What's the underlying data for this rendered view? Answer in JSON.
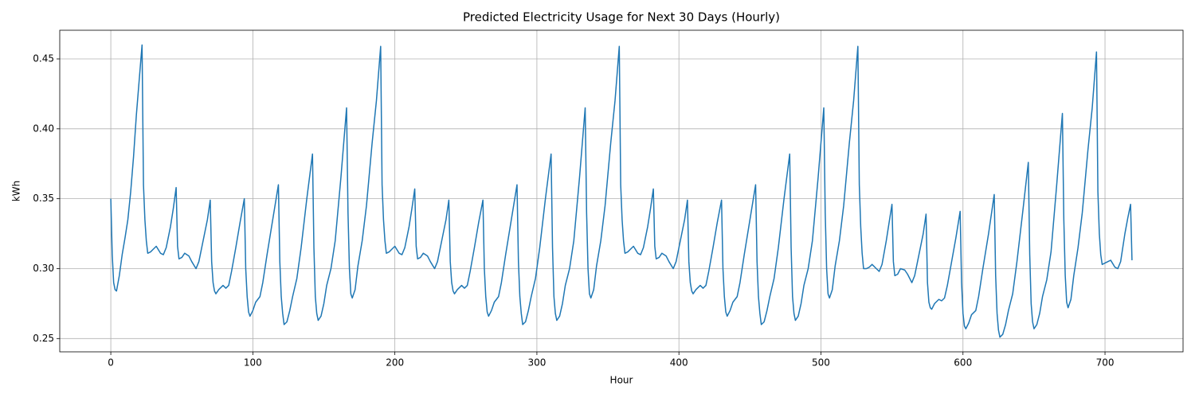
{
  "chart_data": {
    "type": "line",
    "title": "Predicted Electricity Usage for Next 30 Days (Hourly)",
    "x_label": "Hour",
    "y_label": "kWh",
    "color": "#1f77b4",
    "grid": true,
    "xlim": [
      -35.95,
      754.95
    ],
    "ylim": [
      0.2405,
      0.4705
    ],
    "xticks": [
      0,
      100,
      200,
      300,
      400,
      500,
      600,
      700
    ],
    "yticks": [
      0.25,
      {
        "value": 0.3,
        "label": "0.30"
      },
      0.35,
      {
        "value": 0.4,
        "label": "0.40"
      },
      0.45
    ],
    "x": [
      0,
      1,
      2,
      3,
      4,
      6,
      8,
      10,
      12,
      14,
      16,
      18,
      20,
      22,
      23,
      24,
      25,
      26,
      28,
      30,
      32,
      35,
      37,
      39,
      42,
      44,
      46,
      47,
      48,
      50,
      52,
      55,
      57,
      60,
      62,
      65,
      68,
      70,
      71,
      72,
      73,
      74,
      76,
      79,
      81,
      83,
      85,
      88,
      91,
      94,
      95,
      96,
      97,
      98,
      100,
      102,
      105,
      107,
      110,
      114,
      118,
      119,
      120,
      121,
      122,
      124,
      126,
      128,
      131,
      134,
      138,
      142,
      143,
      144,
      145,
      146,
      148,
      150,
      152,
      155,
      158,
      162,
      166,
      167,
      168,
      169,
      170,
      172,
      174,
      177,
      180,
      184,
      187,
      190,
      191,
      192,
      193,
      194,
      196,
      198,
      200,
      203,
      205,
      207,
      210,
      212,
      214,
      215,
      216,
      218,
      220,
      223,
      225,
      228,
      230,
      233,
      236,
      238,
      239,
      240,
      241,
      242,
      244,
      247,
      249,
      251,
      253,
      256,
      259,
      262,
      263,
      264,
      265,
      266,
      268,
      270,
      273,
      275,
      278,
      282,
      286,
      287,
      288,
      289,
      290,
      292,
      294,
      296,
      299,
      302,
      306,
      310,
      311,
      312,
      313,
      314,
      316,
      318,
      320,
      323,
      326,
      330,
      334,
      335,
      336,
      337,
      338,
      340,
      342,
      345,
      348,
      352,
      355,
      358,
      359,
      360,
      361,
      362,
      364,
      366,
      368,
      371,
      373,
      375,
      378,
      380,
      382,
      383,
      384,
      386,
      388,
      391,
      393,
      396,
      398,
      401,
      404,
      406,
      407,
      408,
      409,
      410,
      412,
      415,
      417,
      419,
      421,
      424,
      427,
      430,
      431,
      432,
      433,
      434,
      436,
      438,
      441,
      443,
      446,
      450,
      454,
      455,
      456,
      457,
      458,
      460,
      462,
      464,
      467,
      470,
      474,
      478,
      479,
      480,
      481,
      482,
      484,
      486,
      488,
      491,
      494,
      498,
      502,
      503,
      504,
      505,
      506,
      508,
      510,
      513,
      516,
      520,
      523,
      526,
      527,
      528,
      529,
      530,
      532,
      534,
      536,
      539,
      541,
      543,
      546,
      548,
      550,
      551,
      552,
      554,
      556,
      559,
      561,
      564,
      566,
      569,
      572,
      574,
      575,
      576,
      577,
      578,
      580,
      583,
      585,
      587,
      589,
      592,
      595,
      598,
      599,
      600,
      601,
      602,
      604,
      606,
      609,
      611,
      614,
      618,
      622,
      623,
      624,
      625,
      626,
      628,
      630,
      632,
      635,
      638,
      642,
      646,
      647,
      648,
      649,
      650,
      652,
      654,
      656,
      659,
      662,
      666,
      670,
      671,
      672,
      673,
      674,
      676,
      678,
      681,
      684,
      688,
      691,
      694,
      695,
      696,
      697,
      698,
      700,
      702,
      704,
      707,
      709,
      711,
      714,
      716,
      718,
      719
    ],
    "values": [
      0.35,
      0.31,
      0.29,
      0.285,
      0.284,
      0.295,
      0.31,
      0.322,
      0.335,
      0.355,
      0.38,
      0.41,
      0.435,
      0.46,
      0.36,
      0.335,
      0.32,
      0.311,
      0.312,
      0.314,
      0.316,
      0.311,
      0.31,
      0.315,
      0.33,
      0.343,
      0.358,
      0.316,
      0.307,
      0.308,
      0.311,
      0.309,
      0.305,
      0.3,
      0.305,
      0.32,
      0.335,
      0.349,
      0.305,
      0.29,
      0.284,
      0.282,
      0.285,
      0.288,
      0.286,
      0.288,
      0.298,
      0.315,
      0.333,
      0.35,
      0.3,
      0.28,
      0.269,
      0.266,
      0.27,
      0.276,
      0.28,
      0.29,
      0.31,
      0.335,
      0.36,
      0.305,
      0.28,
      0.268,
      0.26,
      0.262,
      0.27,
      0.28,
      0.293,
      0.315,
      0.35,
      0.382,
      0.315,
      0.28,
      0.268,
      0.263,
      0.266,
      0.275,
      0.288,
      0.3,
      0.32,
      0.365,
      0.415,
      0.34,
      0.3,
      0.282,
      0.279,
      0.285,
      0.302,
      0.32,
      0.345,
      0.39,
      0.42,
      0.459,
      0.36,
      0.335,
      0.32,
      0.311,
      0.312,
      0.314,
      0.316,
      0.311,
      0.31,
      0.315,
      0.33,
      0.343,
      0.357,
      0.316,
      0.307,
      0.308,
      0.311,
      0.309,
      0.305,
      0.3,
      0.305,
      0.32,
      0.335,
      0.349,
      0.305,
      0.29,
      0.284,
      0.282,
      0.285,
      0.288,
      0.286,
      0.288,
      0.298,
      0.315,
      0.333,
      0.349,
      0.3,
      0.28,
      0.269,
      0.266,
      0.27,
      0.276,
      0.28,
      0.29,
      0.31,
      0.335,
      0.36,
      0.305,
      0.28,
      0.268,
      0.26,
      0.262,
      0.27,
      0.28,
      0.293,
      0.315,
      0.35,
      0.382,
      0.315,
      0.28,
      0.268,
      0.263,
      0.266,
      0.275,
      0.288,
      0.3,
      0.32,
      0.365,
      0.415,
      0.34,
      0.3,
      0.282,
      0.279,
      0.285,
      0.302,
      0.32,
      0.345,
      0.39,
      0.42,
      0.459,
      0.36,
      0.335,
      0.32,
      0.311,
      0.312,
      0.314,
      0.316,
      0.311,
      0.31,
      0.315,
      0.33,
      0.343,
      0.357,
      0.316,
      0.307,
      0.308,
      0.311,
      0.309,
      0.305,
      0.3,
      0.305,
      0.32,
      0.335,
      0.349,
      0.305,
      0.29,
      0.284,
      0.282,
      0.285,
      0.288,
      0.286,
      0.288,
      0.298,
      0.315,
      0.333,
      0.349,
      0.3,
      0.28,
      0.269,
      0.266,
      0.27,
      0.276,
      0.28,
      0.29,
      0.31,
      0.335,
      0.36,
      0.305,
      0.28,
      0.268,
      0.26,
      0.262,
      0.27,
      0.28,
      0.293,
      0.315,
      0.35,
      0.382,
      0.315,
      0.28,
      0.268,
      0.263,
      0.266,
      0.275,
      0.288,
      0.3,
      0.32,
      0.365,
      0.415,
      0.34,
      0.3,
      0.282,
      0.279,
      0.285,
      0.302,
      0.32,
      0.345,
      0.39,
      0.42,
      0.459,
      0.36,
      0.33,
      0.311,
      0.3,
      0.3,
      0.301,
      0.303,
      0.3,
      0.298,
      0.303,
      0.32,
      0.333,
      0.346,
      0.305,
      0.295,
      0.296,
      0.3,
      0.299,
      0.296,
      0.29,
      0.295,
      0.31,
      0.325,
      0.339,
      0.29,
      0.276,
      0.272,
      0.271,
      0.275,
      0.278,
      0.277,
      0.279,
      0.288,
      0.305,
      0.322,
      0.341,
      0.29,
      0.268,
      0.259,
      0.257,
      0.261,
      0.267,
      0.27,
      0.28,
      0.3,
      0.325,
      0.353,
      0.295,
      0.268,
      0.256,
      0.251,
      0.253,
      0.26,
      0.27,
      0.282,
      0.305,
      0.34,
      0.376,
      0.31,
      0.275,
      0.262,
      0.257,
      0.26,
      0.268,
      0.28,
      0.292,
      0.312,
      0.36,
      0.411,
      0.335,
      0.295,
      0.276,
      0.272,
      0.278,
      0.295,
      0.315,
      0.34,
      0.385,
      0.415,
      0.455,
      0.355,
      0.325,
      0.31,
      0.303,
      0.304,
      0.305,
      0.306,
      0.301,
      0.3,
      0.305,
      0.325,
      0.336,
      0.346,
      0.306
    ]
  }
}
